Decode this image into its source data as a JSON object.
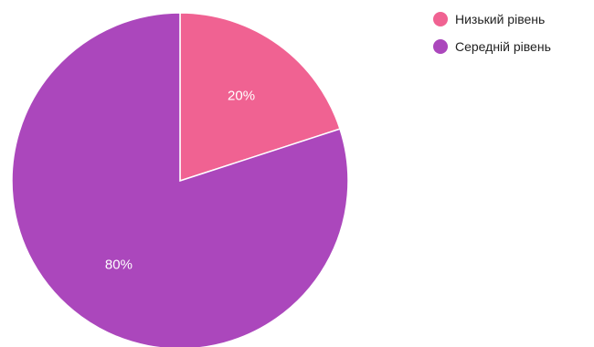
{
  "chart_data": {
    "type": "pie",
    "start_angle_deg": 0,
    "direction": "clockwise",
    "legend_position": "top-right",
    "slices": [
      {
        "label": "Низький рівень",
        "value": 20,
        "display": "20%",
        "color": "#f06292"
      },
      {
        "label": "Середній рівень",
        "value": 80,
        "display": "80%",
        "color": "#ab47bc"
      }
    ]
  }
}
